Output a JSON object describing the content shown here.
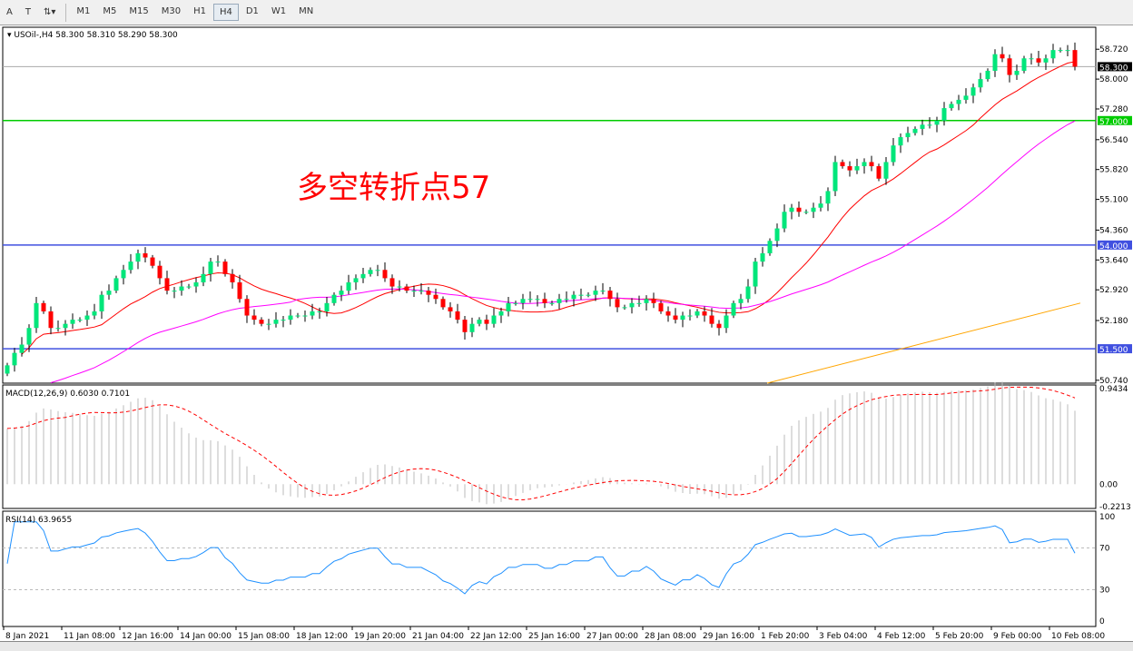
{
  "toolbar": {
    "tools": [
      {
        "icon": "text-icon",
        "label": "A"
      },
      {
        "icon": "text-label-icon",
        "label": "T"
      },
      {
        "icon": "arrows-icon",
        "label": "⇅▾"
      }
    ],
    "timeframes": [
      "M1",
      "M5",
      "M15",
      "M30",
      "H1",
      "H4",
      "D1",
      "W1",
      "MN"
    ],
    "active": "H4"
  },
  "header": {
    "symbol": "▾ USOil-,H4  58.300 58.310 58.290 58.300"
  },
  "annotation": {
    "text": "多空转折点57",
    "color": "#ff0000"
  },
  "colors": {
    "bull": "#00e67a",
    "bear": "#ff0000",
    "ma_fast": "#ff0000",
    "ma_mid": "#ff00ff",
    "ma_slow": "#ffa500",
    "level_green": "#00cc00",
    "level_blue": "#4050e0"
  },
  "chart_data": {
    "type": "candlestick",
    "symbol": "USOil-",
    "timeframe": "H4",
    "ylim": [
      50.67,
      59.25
    ],
    "price_ticks": [
      "58.720",
      "58.000",
      "57.280",
      "56.540",
      "55.820",
      "55.100",
      "54.360",
      "53.640",
      "52.920",
      "52.180",
      "50.740"
    ],
    "levels": [
      {
        "price": 57.0,
        "label": "57.000",
        "color": "#00cc00"
      },
      {
        "price": 54.0,
        "label": "54.000",
        "color": "#4050e0"
      },
      {
        "price": 51.5,
        "label": "51.500",
        "color": "#4050e0"
      }
    ],
    "current_price": {
      "price": 58.3,
      "label": "58.300"
    },
    "x_labels": [
      "8 Jan 2021",
      "11 Jan 08:00",
      "12 Jan 16:00",
      "14 Jan 00:00",
      "15 Jan 08:00",
      "18 Jan 12:00",
      "19 Jan 20:00",
      "21 Jan 04:00",
      "22 Jan 12:00",
      "25 Jan 16:00",
      "27 Jan 00:00",
      "28 Jan 08:00",
      "29 Jan 16:00",
      "1 Feb 20:00",
      "3 Feb 04:00",
      "4 Feb 12:00",
      "5 Feb 20:00",
      "9 Feb 00:00",
      "10 Feb 08:00"
    ],
    "closes": [
      51.1,
      51.4,
      51.6,
      52.0,
      52.6,
      52.4,
      52.0,
      52.0,
      52.1,
      52.2,
      52.2,
      52.3,
      52.4,
      52.8,
      52.9,
      53.2,
      53.4,
      53.6,
      53.8,
      53.7,
      53.5,
      53.2,
      52.9,
      52.9,
      53.0,
      53.0,
      53.1,
      53.3,
      53.6,
      53.6,
      53.3,
      53.1,
      52.7,
      52.3,
      52.2,
      52.1,
      52.1,
      52.2,
      52.2,
      52.3,
      52.3,
      52.3,
      52.4,
      52.4,
      52.6,
      52.8,
      52.9,
      53.1,
      53.2,
      53.3,
      53.4,
      53.4,
      53.2,
      53.0,
      53.0,
      52.9,
      52.9,
      52.9,
      52.8,
      52.7,
      52.5,
      52.4,
      52.2,
      51.9,
      52.1,
      52.2,
      52.1,
      52.3,
      52.4,
      52.6,
      52.6,
      52.7,
      52.7,
      52.7,
      52.6,
      52.6,
      52.7,
      52.7,
      52.8,
      52.8,
      52.8,
      52.9,
      52.9,
      52.7,
      52.5,
      52.5,
      52.6,
      52.6,
      52.7,
      52.6,
      52.4,
      52.3,
      52.2,
      52.3,
      52.3,
      52.4,
      52.3,
      52.1,
      52.0,
      52.3,
      52.6,
      52.7,
      53.0,
      53.6,
      53.8,
      54.1,
      54.4,
      54.8,
      54.9,
      54.8,
      54.8,
      54.9,
      55.0,
      55.3,
      56.0,
      55.9,
      55.8,
      55.9,
      56.0,
      55.9,
      55.6,
      56.0,
      56.4,
      56.6,
      56.7,
      56.8,
      56.9,
      56.9,
      57.0,
      57.3,
      57.4,
      57.5,
      57.6,
      57.8,
      58.0,
      58.2,
      58.6,
      58.5,
      58.1,
      58.2,
      58.5,
      58.5,
      58.4,
      58.5,
      58.7,
      58.7,
      58.7,
      58.3
    ],
    "slow_ma_range": [
      50.67,
      52.6
    ],
    "macd": {
      "label": "MACD(12,26,9) 0.6030 0.7101",
      "ylim": [
        -0.2213,
        0.9434
      ],
      "ticks": [
        "0.9434",
        "0.00",
        "-0.2213"
      ]
    },
    "rsi": {
      "label": "RSI(14) 63.9655",
      "ylim": [
        0,
        100
      ],
      "ticks": [
        "100",
        "70",
        "30",
        "0"
      ],
      "levels": [
        70,
        30
      ]
    }
  }
}
